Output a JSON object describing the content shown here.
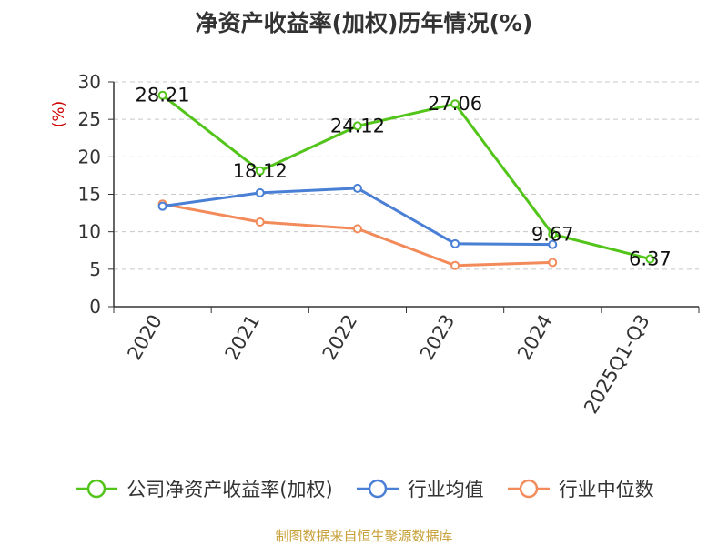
{
  "title": "净资产收益率(加权)历年情况(%)",
  "source": "制图数据来自恒生聚源数据库",
  "chart_data": {
    "type": "line",
    "title": "净资产收益率(加权)历年情况(%)",
    "ylabel": "(%)",
    "xlabel": "",
    "categories": [
      "2020",
      "2021",
      "2022",
      "2023",
      "2024",
      "2025Q1-Q3"
    ],
    "ylim": [
      0,
      30
    ],
    "yticks": [
      0,
      5,
      10,
      15,
      20,
      25,
      30
    ],
    "grid": true,
    "legend_position": "bottom",
    "series": [
      {
        "name": "公司净资产收益率(加权)",
        "color": "#52c41a",
        "values": [
          28.21,
          18.12,
          24.12,
          27.06,
          9.67,
          6.37
        ],
        "data_labels": [
          "28.21",
          "18.12",
          "24.12",
          "27.06",
          "9.67",
          "6.37"
        ]
      },
      {
        "name": "行业均值",
        "color": "#4a7fd6",
        "values": [
          13.4,
          15.2,
          15.8,
          8.4,
          8.3,
          null
        ]
      },
      {
        "name": "行业中位数",
        "color": "#f28a5a",
        "values": [
          13.7,
          11.3,
          10.4,
          5.5,
          5.9,
          null
        ]
      }
    ]
  }
}
